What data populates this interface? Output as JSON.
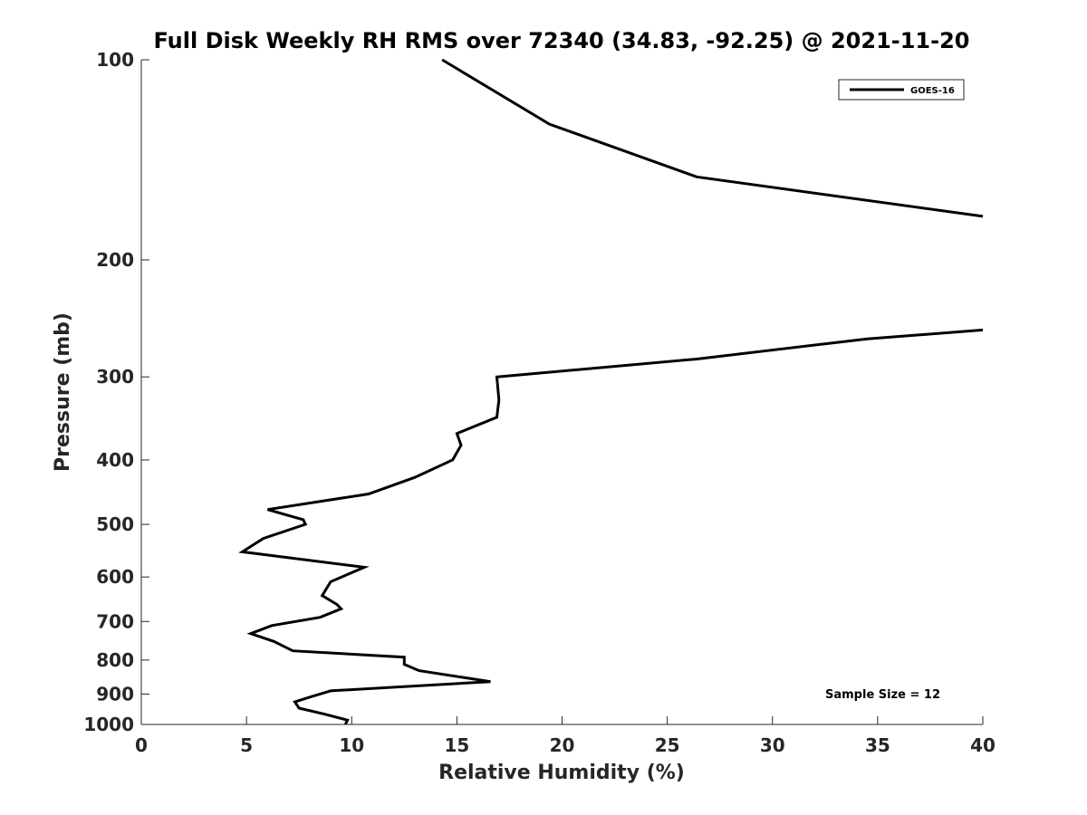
{
  "chart_data": {
    "type": "line",
    "title": "Full Disk Weekly RH RMS over 72340 (34.83, -92.25) @ 2021-11-20",
    "xlabel": "Relative Humidity (%)",
    "ylabel": "Pressure (mb)",
    "xlim": [
      0,
      40
    ],
    "ylim": [
      100,
      1000
    ],
    "yscale": "log",
    "y_reversed": true,
    "xticks": [
      0,
      5,
      10,
      15,
      20,
      25,
      30,
      35,
      40
    ],
    "yticks": [
      100,
      200,
      300,
      400,
      500,
      600,
      700,
      800,
      900,
      1000
    ],
    "grid": false,
    "legend_position": "top-right",
    "series": [
      {
        "name": "GOES-16",
        "color": "#000000",
        "segments": [
          [
            [
              14.3,
              100
            ],
            [
              19.4,
              125
            ],
            [
              26.4,
              150
            ],
            [
              40.0,
              172
            ]
          ],
          [
            [
              40.0,
              255
            ],
            [
              34.5,
              263
            ],
            [
              26.4,
              282
            ],
            [
              16.9,
              300
            ],
            [
              17.0,
              325
            ],
            [
              16.9,
              345
            ],
            [
              15.0,
              365
            ],
            [
              15.2,
              380
            ],
            [
              14.8,
              400
            ],
            [
              13.0,
              425
            ],
            [
              10.8,
              450
            ],
            [
              6.0,
              475
            ],
            [
              7.7,
              492
            ],
            [
              7.8,
              500
            ],
            [
              5.8,
              525
            ],
            [
              4.8,
              550
            ],
            [
              10.6,
              580
            ],
            [
              9.0,
              610
            ],
            [
              8.6,
              640
            ],
            [
              9.3,
              660
            ],
            [
              9.5,
              670
            ],
            [
              8.5,
              690
            ],
            [
              6.2,
              710
            ],
            [
              5.2,
              730
            ],
            [
              6.3,
              750
            ],
            [
              7.2,
              775
            ],
            [
              12.5,
              792
            ],
            [
              12.5,
              812
            ],
            [
              13.2,
              830
            ],
            [
              16.6,
              862
            ],
            [
              9.0,
              890
            ],
            [
              8.1,
              908
            ],
            [
              7.3,
              925
            ],
            [
              7.5,
              945
            ],
            [
              8.7,
              965
            ],
            [
              9.8,
              985
            ],
            [
              9.7,
              1000
            ]
          ]
        ]
      }
    ],
    "annotations": [
      "Sample Size = 12"
    ]
  }
}
